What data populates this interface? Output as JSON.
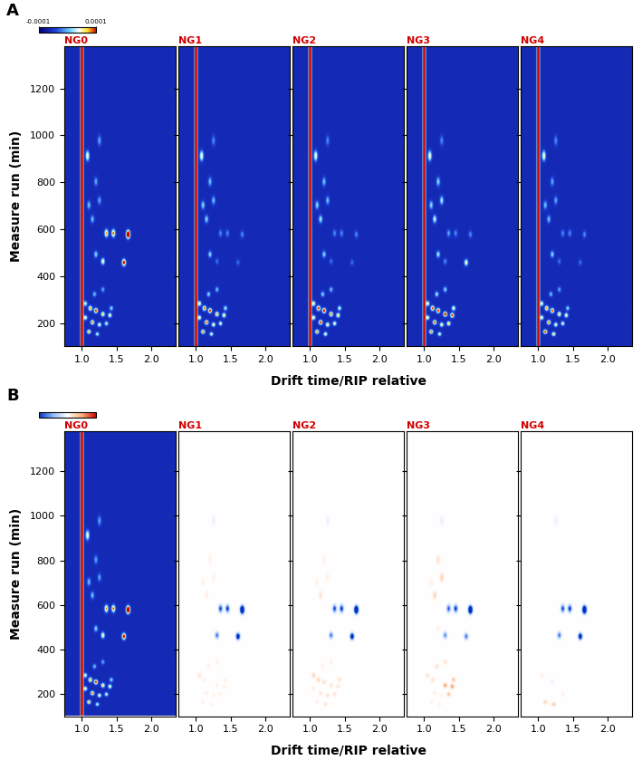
{
  "chart_data": {
    "type": "heatmap",
    "xlabel": "Drift time/RIP relative",
    "ylabel": "Measure run (min)",
    "xlim": [
      0.75,
      2.35
    ],
    "ylim": [
      100,
      1380
    ],
    "xticks": [
      1.0,
      1.5,
      2.0
    ],
    "yticks": [
      200,
      400,
      600,
      800,
      1000,
      1200
    ],
    "colorbar": {
      "range": [
        -0.0001,
        0.0001
      ],
      "ticks": [
        -0.0001,
        0.0001
      ]
    },
    "background": -6e-05,
    "rip": {
      "drift": 1.0,
      "intensity": 0.0004
    },
    "peaks": {
      "drift": [
        1.08,
        1.25,
        1.35,
        1.45,
        1.66,
        1.3,
        1.6,
        1.2,
        1.1,
        1.25,
        1.15,
        1.05,
        1.12,
        1.2,
        1.3,
        1.4,
        1.15,
        1.25,
        1.1,
        1.22,
        1.35,
        1.05,
        1.42,
        1.18,
        1.3,
        1.2
      ],
      "time": [
        910,
        975,
        580,
        580,
        575,
        460,
        455,
        490,
        700,
        720,
        640,
        280,
        260,
        250,
        235,
        230,
        200,
        190,
        160,
        150,
        195,
        220,
        260,
        320,
        340,
        800
      ]
    },
    "samples": [
      {
        "name": "NG0",
        "intensity": [
          0.00012,
          6e-05,
          0.00015,
          0.00016,
          0.0003,
          0.00012,
          0.0002,
          8e-05,
          7e-05,
          6e-05,
          7e-05,
          0.0001,
          0.00015,
          0.00018,
          0.00014,
          0.00012,
          0.00016,
          0.00012,
          0.00015,
          0.0001,
          0.0001,
          0.00012,
          8e-05,
          7e-05,
          6e-05,
          6e-05
        ]
      },
      {
        "name": "NG1",
        "intensity": [
          0.00012,
          5e-05,
          5e-05,
          5e-05,
          5e-05,
          4e-05,
          4e-05,
          8e-05,
          8e-05,
          7e-05,
          8e-05,
          0.00012,
          0.00016,
          0.00018,
          0.00015,
          0.00013,
          0.00017,
          0.00013,
          0.00016,
          0.00011,
          0.00011,
          0.00012,
          9e-05,
          8e-05,
          7e-05,
          7e-05
        ]
      },
      {
        "name": "NG2",
        "intensity": [
          0.00012,
          5e-05,
          5e-05,
          5e-05,
          5e-05,
          4e-05,
          4e-05,
          8e-05,
          8e-05,
          7e-05,
          9e-05,
          0.00013,
          0.00018,
          0.0002,
          0.00016,
          0.00014,
          0.00018,
          0.00014,
          0.00016,
          0.00012,
          0.00012,
          0.00013,
          0.0001,
          8e-05,
          7e-05,
          7e-05
        ]
      },
      {
        "name": "NG3",
        "intensity": [
          0.00012,
          5e-05,
          6e-05,
          5e-05,
          5e-05,
          5e-05,
          0.00012,
          9e-05,
          8e-05,
          9e-05,
          0.0001,
          0.00012,
          0.00017,
          0.00018,
          0.0002,
          0.00018,
          0.00017,
          0.00013,
          0.00016,
          0.00011,
          0.00014,
          0.00012,
          0.00012,
          9e-05,
          8e-05,
          8e-05
        ]
      },
      {
        "name": "NG4",
        "intensity": [
          0.00012,
          5e-05,
          5e-05,
          5e-05,
          5e-05,
          4e-05,
          4e-05,
          8e-05,
          7e-05,
          6e-05,
          7e-05,
          0.00011,
          0.00015,
          0.00017,
          0.00014,
          0.00012,
          0.00016,
          0.00012,
          0.00018,
          0.00014,
          0.00011,
          0.00012,
          8e-05,
          7e-05,
          6e-05,
          6e-05
        ]
      }
    ],
    "panels": [
      {
        "label": "A",
        "type": "heatmap"
      },
      {
        "label": "B",
        "type": "difference"
      }
    ]
  }
}
